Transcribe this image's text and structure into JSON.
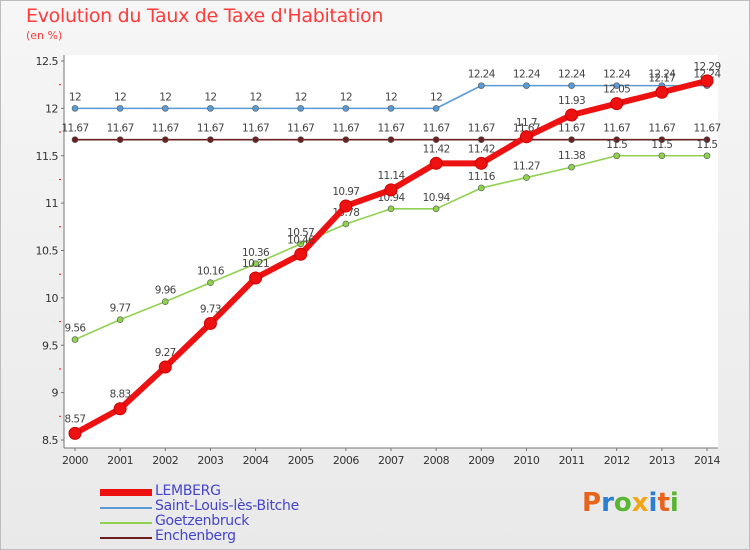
{
  "header": {
    "title": "Evolution du Taux de Taxe d'Habitation",
    "unit": "(en %)"
  },
  "logo": {
    "text": "Proxiti",
    "letter_colors": [
      "#e8641b",
      "#2b7fd1",
      "#59b630",
      "#f0a517",
      "#2b7fd1",
      "#e8641b",
      "#59b630"
    ]
  },
  "chart_data": {
    "type": "line",
    "x": [
      2000,
      2001,
      2002,
      2003,
      2004,
      2005,
      2006,
      2007,
      2008,
      2009,
      2010,
      2011,
      2012,
      2013,
      2014
    ],
    "x_tick_labels": [
      "2000",
      "2001",
      "2002",
      "2003",
      "2004",
      "2005",
      "2006",
      "2007",
      "2008",
      "2009",
      "2010",
      "2011",
      "2012",
      "2013",
      "2014"
    ],
    "ylim": [
      8.5,
      12.5
    ],
    "y_ticks": [
      8.5,
      9,
      9.5,
      10,
      10.5,
      11,
      11.5,
      12,
      12.5
    ],
    "y_tick_labels": [
      "8.5",
      "9",
      "9.5",
      "10",
      "10.5",
      "11",
      "11.5",
      "12",
      "12.5"
    ],
    "grid": false,
    "legend_position": "bottom-left",
    "series": [
      {
        "name": "Enchenberg",
        "color": "#6b1f1f",
        "values": [
          11.67,
          11.67,
          11.67,
          11.67,
          11.67,
          11.67,
          11.67,
          11.67,
          11.67,
          11.67,
          11.67,
          11.67,
          11.67,
          11.67,
          11.67
        ],
        "labels": [
          "11.67",
          "11.67",
          "11.67",
          "11.67",
          "11.67",
          "11.67",
          "11.67",
          "11.67",
          "11.67",
          "11.67",
          "11.67",
          "11.67",
          "11.67",
          "11.67",
          "11.67"
        ]
      },
      {
        "name": "Goetzenbruck",
        "color": "#8fd14f",
        "values": [
          9.56,
          9.77,
          9.96,
          10.16,
          10.36,
          10.57,
          10.78,
          10.94,
          10.94,
          11.16,
          11.27,
          11.38,
          11.5,
          11.5,
          11.5
        ],
        "labels": [
          "9.56",
          "9.77",
          "9.96",
          "10.16",
          "10.36",
          "10.57",
          "10.78",
          "10.94",
          "10.94",
          "11.16",
          "11.27",
          "11.38",
          "11.5",
          "11.5",
          "11.5"
        ]
      },
      {
        "name": "Saint-Louis-lès-Bitche",
        "color": "#5b9bd5",
        "values": [
          12,
          12,
          12,
          12,
          12,
          12,
          12,
          12,
          12,
          12.24,
          12.24,
          12.24,
          12.24,
          12.24,
          12.24
        ],
        "labels": [
          "12",
          "12",
          "12",
          "12",
          "12",
          "12",
          "12",
          "12",
          "12",
          "12.24",
          "12.24",
          "12.24",
          "12.24",
          "12.24",
          "12.24"
        ]
      },
      {
        "name": "LEMBERG",
        "color": "#ee1111",
        "values": [
          8.57,
          8.83,
          9.27,
          9.73,
          10.21,
          10.46,
          10.97,
          11.14,
          11.42,
          11.42,
          11.7,
          11.93,
          12.05,
          12.17,
          12.29
        ],
        "labels": [
          "8.57",
          "8.83",
          "9.27",
          "9.73",
          "10.21",
          "10.46",
          "10.97",
          "11.14",
          "11.42",
          "11.42",
          "11.7",
          "11.93",
          "12.05",
          "12.17",
          "12.29"
        ]
      }
    ],
    "legend_order": [
      "LEMBERG",
      "Saint-Louis-lès-Bitche",
      "Goetzenbruck",
      "Enchenberg"
    ]
  }
}
